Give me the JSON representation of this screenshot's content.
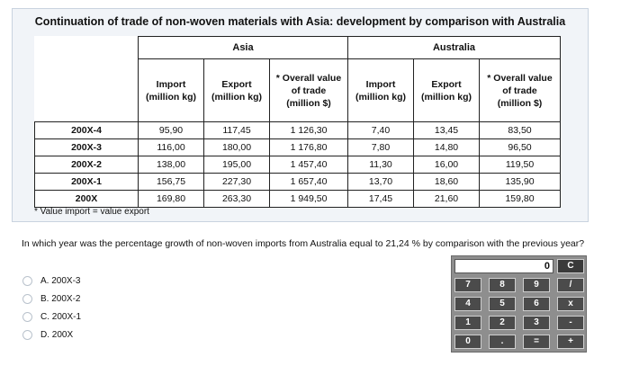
{
  "title": "Continuation of trade of non-woven materials with Asia: development by comparison with Australia",
  "table": {
    "groups": [
      "Asia",
      "Australia"
    ],
    "subheaders": {
      "asia_import": [
        "Import",
        "(million kg)"
      ],
      "asia_export": [
        "Export",
        "(million kg)"
      ],
      "asia_overall": [
        "* Overall value",
        "of trade",
        "(million $)"
      ],
      "aus_import": [
        "Import",
        "(million kg)"
      ],
      "aus_export": [
        "Export",
        "(million kg)"
      ],
      "aus_overall": [
        "* Overall value",
        "of trade",
        "(million $)"
      ]
    },
    "rows": [
      {
        "year": "200X-4",
        "asia_import": "95,90",
        "asia_export": "117,45",
        "asia_overall": "1 126,30",
        "aus_import": "7,40",
        "aus_export": "13,45",
        "aus_overall": "83,50"
      },
      {
        "year": "200X-3",
        "asia_import": "116,00",
        "asia_export": "180,00",
        "asia_overall": "1 176,80",
        "aus_import": "7,80",
        "aus_export": "14,80",
        "aus_overall": "96,50"
      },
      {
        "year": "200X-2",
        "asia_import": "138,00",
        "asia_export": "195,00",
        "asia_overall": "1 457,40",
        "aus_import": "11,30",
        "aus_export": "16,00",
        "aus_overall": "119,50"
      },
      {
        "year": "200X-1",
        "asia_import": "156,75",
        "asia_export": "227,30",
        "asia_overall": "1 657,40",
        "aus_import": "13,70",
        "aus_export": "18,60",
        "aus_overall": "135,90"
      },
      {
        "year": "200X",
        "asia_import": "169,80",
        "asia_export": "263,30",
        "asia_overall": "1 949,50",
        "aus_import": "17,45",
        "aus_export": "21,60",
        "aus_overall": "159,80"
      }
    ]
  },
  "note": "* Value import = value export",
  "question": "In which year was the percentage growth of non-woven imports from Australia equal to 21,24 % by comparison with the previous year?",
  "options": [
    "A.  200X-3",
    "B.  200X-2",
    "C.  200X-1",
    "D.  200X"
  ],
  "calculator": {
    "display": "0",
    "keys": {
      "clear": "C",
      "seven": "7",
      "eight": "8",
      "nine": "9",
      "divide": "/",
      "four": "4",
      "five": "5",
      "six": "6",
      "multiply": "x",
      "one": "1",
      "two": "2",
      "three": "3",
      "minus": "-",
      "zero": "0",
      "dot": ".",
      "equals": "=",
      "plus": "+"
    }
  }
}
